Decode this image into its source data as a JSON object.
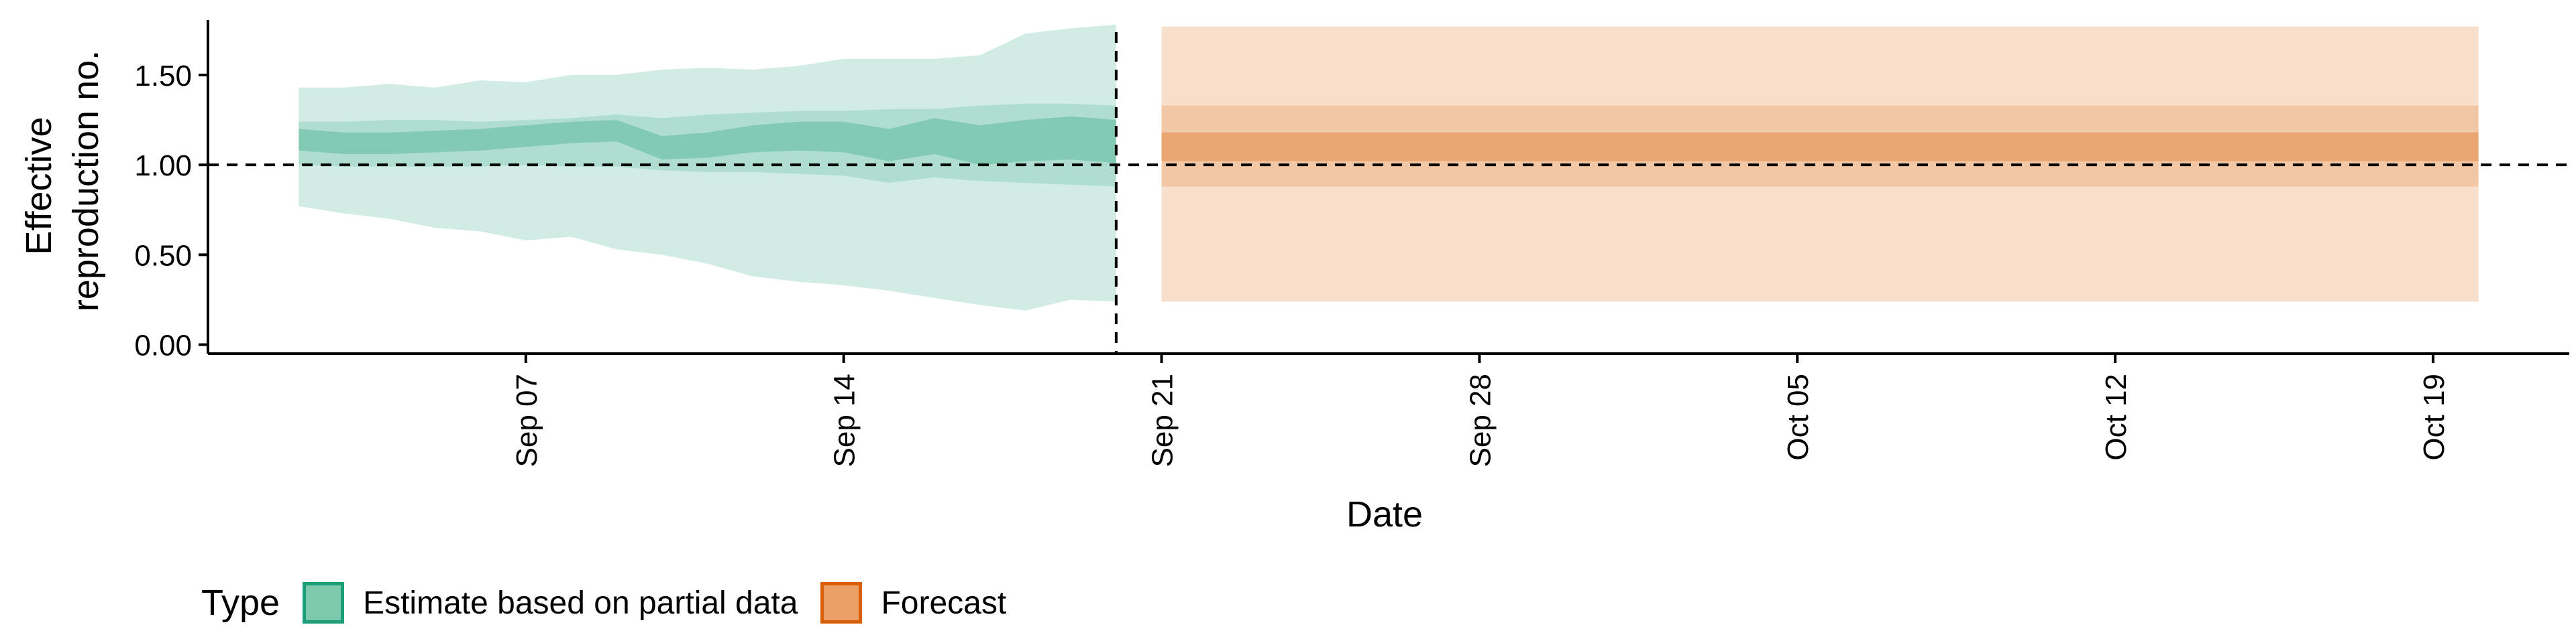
{
  "chart_data": {
    "type": "area",
    "xlabel": "Date",
    "ylabel": [
      "Effective",
      "reproduction no."
    ],
    "x_start": "2020-09-02",
    "xlim": [
      "2020-08-31",
      "2020-10-22"
    ],
    "ylim": [
      -0.05,
      1.85
    ],
    "y_ticks": [
      0.0,
      0.5,
      1.0,
      1.5
    ],
    "y_tick_labels": [
      "0.00",
      "0.50",
      "1.00",
      "1.50"
    ],
    "x_ticks": [
      "2020-09-07",
      "2020-09-14",
      "2020-09-21",
      "2020-09-28",
      "2020-10-05",
      "2020-10-12",
      "2020-10-19"
    ],
    "x_tick_labels": [
      "Sep 07",
      "Sep 14",
      "Sep 21",
      "Sep 28",
      "Oct 05",
      "Oct 12",
      "Oct 19"
    ],
    "reference_lines": {
      "horizontal": 1.0,
      "vertical": "2020-09-20"
    },
    "grid": false,
    "legend_position": "bottom-left",
    "series": [
      {
        "name": "Estimate based on partial data",
        "color": "#1b9e77",
        "dates": [
          "2020-09-02",
          "2020-09-03",
          "2020-09-04",
          "2020-09-05",
          "2020-09-06",
          "2020-09-07",
          "2020-09-08",
          "2020-09-09",
          "2020-09-10",
          "2020-09-11",
          "2020-09-12",
          "2020-09-13",
          "2020-09-14",
          "2020-09-15",
          "2020-09-16",
          "2020-09-17",
          "2020-09-18",
          "2020-09-19",
          "2020-09-20"
        ],
        "median": [
          1.14,
          1.12,
          1.12,
          1.13,
          1.14,
          1.16,
          1.18,
          1.19,
          1.09,
          1.11,
          1.15,
          1.16,
          1.15,
          1.11,
          1.16,
          1.11,
          1.14,
          1.15,
          1.13
        ],
        "inner": {
          "lower": [
            1.08,
            1.06,
            1.06,
            1.07,
            1.08,
            1.1,
            1.12,
            1.13,
            1.03,
            1.04,
            1.07,
            1.08,
            1.07,
            1.02,
            1.06,
            1.0,
            1.02,
            1.03,
            1.01
          ],
          "upper": [
            1.2,
            1.18,
            1.18,
            1.19,
            1.2,
            1.22,
            1.24,
            1.25,
            1.16,
            1.18,
            1.22,
            1.24,
            1.24,
            1.2,
            1.26,
            1.22,
            1.25,
            1.27,
            1.25
          ]
        },
        "middle": {
          "lower": [
            1.0,
            0.99,
            0.99,
            0.99,
            0.99,
            1.0,
            0.99,
            0.99,
            0.97,
            0.96,
            0.96,
            0.95,
            0.94,
            0.9,
            0.93,
            0.91,
            0.9,
            0.89,
            0.88
          ],
          "upper": [
            1.24,
            1.24,
            1.25,
            1.25,
            1.24,
            1.25,
            1.26,
            1.28,
            1.26,
            1.28,
            1.29,
            1.3,
            1.3,
            1.31,
            1.31,
            1.33,
            1.34,
            1.34,
            1.33
          ]
        },
        "outer": {
          "lower": [
            0.77,
            0.73,
            0.7,
            0.65,
            0.63,
            0.58,
            0.6,
            0.53,
            0.5,
            0.45,
            0.38,
            0.35,
            0.33,
            0.3,
            0.26,
            0.22,
            0.19,
            0.25,
            0.24
          ],
          "upper": [
            1.43,
            1.43,
            1.45,
            1.43,
            1.47,
            1.46,
            1.5,
            1.5,
            1.53,
            1.54,
            1.53,
            1.55,
            1.59,
            1.59,
            1.59,
            1.61,
            1.73,
            1.76,
            1.78
          ]
        }
      },
      {
        "name": "Forecast",
        "color": "#d95f02",
        "dates": [
          "2020-09-21",
          "2020-10-20"
        ],
        "median": [
          1.11,
          1.11
        ],
        "inner": {
          "lower": [
            1.02,
            1.02
          ],
          "upper": [
            1.18,
            1.18
          ]
        },
        "middle": {
          "lower": [
            0.88,
            0.88
          ],
          "upper": [
            1.33,
            1.33
          ]
        },
        "outer": {
          "lower": [
            0.24,
            0.24
          ],
          "upper": [
            1.77,
            1.77
          ]
        }
      }
    ]
  },
  "legend": {
    "title": "Type",
    "items": [
      {
        "label": "Estimate based on partial data",
        "fill": "#7dc9ae",
        "stroke": "#1b9e77"
      },
      {
        "label": "Forecast",
        "fill": "#ec9f66",
        "stroke": "#d95f02"
      }
    ]
  }
}
